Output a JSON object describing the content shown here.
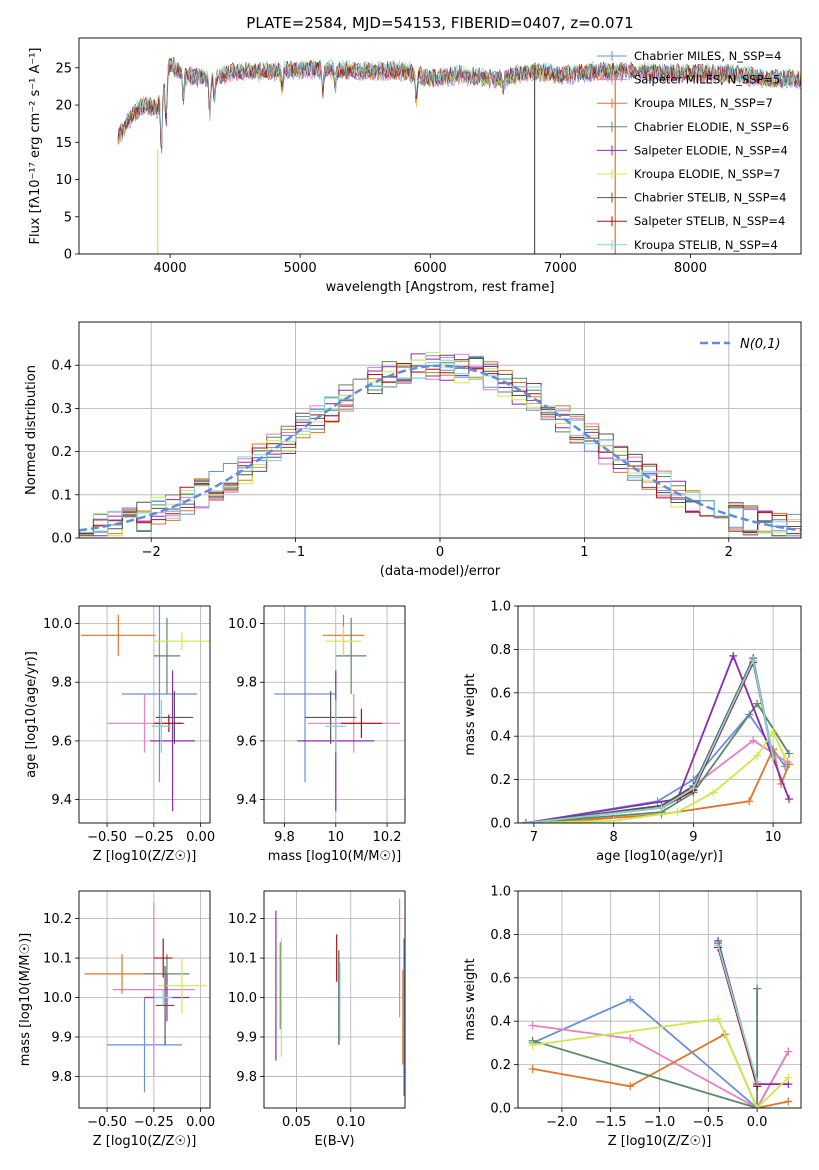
{
  "colors": {
    "chabrier_miles": "#6a8fdc",
    "salpeter_miles": "#e87fbf",
    "kroupa_miles": "#e0762a",
    "chabrier_elodie": "#5a8a66",
    "salpeter_elodie": "#8e2ab0",
    "kroupa_elodie": "#cdea4a",
    "chabrier_stelib": "#555555",
    "salpeter_stelib": "#aa1111",
    "kroupa_stelib": "#7fd4de",
    "gaussian": "#5a8fdc"
  },
  "chart_data": [
    {
      "type": "line",
      "title": "PLATE=2584, MJD=54153, FIBERID=0407, z=0.071",
      "xlabel": "wavelength [Angstrom, rest frame]",
      "ylabel": "Flux [fλ10⁻¹⁷ erg cm⁻² s⁻¹ A⁻¹]",
      "xlim": [
        3300,
        8850
      ],
      "ylim": [
        0,
        29
      ],
      "xticks": [
        4000,
        5000,
        6000,
        7000,
        8000
      ],
      "yticks": [
        0,
        5,
        10,
        15,
        20,
        25
      ],
      "grid": false,
      "legend_position": "top-right",
      "legend": [
        {
          "label": "Chabrier MILES, N_SSP=4",
          "color_key": "chabrier_miles"
        },
        {
          "label": "Salpeter MILES, N_SSP=5",
          "color_key": "salpeter_miles"
        },
        {
          "label": "Kroupa MILES, N_SSP=7",
          "color_key": "kroupa_miles"
        },
        {
          "label": "Chabrier ELODIE, N_SSP=6",
          "color_key": "chabrier_elodie"
        },
        {
          "label": "Salpeter ELODIE, N_SSP=4",
          "color_key": "salpeter_elodie"
        },
        {
          "label": "Kroupa ELODIE, N_SSP=7",
          "color_key": "kroupa_elodie"
        },
        {
          "label": "Chabrier STELIB, N_SSP=4",
          "color_key": "chabrier_stelib"
        },
        {
          "label": "Salpeter STELIB, N_SSP=4",
          "color_key": "salpeter_stelib"
        },
        {
          "label": "Kroupa STELIB, N_SSP=4",
          "color_key": "kroupa_stelib"
        }
      ],
      "continuum": {
        "x": [
          3600,
          3700,
          3800,
          3900,
          4000,
          4100,
          4300,
          4500,
          4800,
          5000,
          5200,
          5500,
          5800,
          6000,
          6200,
          6500,
          6800,
          7000,
          7300,
          7600,
          7800,
          8000,
          8300,
          8600,
          8850
        ],
        "y": [
          15.5,
          18.5,
          20,
          19.5,
          25.5,
          24,
          23.5,
          24.5,
          24.5,
          24.8,
          24.8,
          24.5,
          24.6,
          23.5,
          24,
          23.5,
          24.5,
          24,
          24.5,
          24.5,
          24.2,
          24.3,
          24.2,
          23.5,
          23.5
        ]
      },
      "absorption_lines": [
        {
          "x": 3934,
          "depth": 8
        },
        {
          "x": 3969,
          "depth": 6
        },
        {
          "x": 4102,
          "depth": 3
        },
        {
          "x": 4305,
          "depth": 4.5
        },
        {
          "x": 4341,
          "depth": 3
        },
        {
          "x": 4861,
          "depth": 2.5
        },
        {
          "x": 5175,
          "depth": 3
        },
        {
          "x": 5270,
          "depth": 2
        },
        {
          "x": 5893,
          "depth": 3.5
        },
        {
          "x": 6563,
          "depth": 1.5
        }
      ],
      "sky_spikes": [
        {
          "x": 3905,
          "y0": 0,
          "y1": 14,
          "color_key": "kroupa_elodie"
        },
        {
          "x": 6802,
          "y0": 0,
          "y1": 25,
          "color_key": "chabrier_stelib"
        },
        {
          "x": 7422,
          "y0": 0,
          "y1": 24,
          "color_key": "kroupa_miles"
        }
      ]
    },
    {
      "type": "bar",
      "xlabel": "(data-model)/error",
      "ylabel": "Normed distribution",
      "xlim": [
        -2.5,
        2.5
      ],
      "ylim": [
        0,
        0.5
      ],
      "xticks": [
        -2,
        -1,
        0,
        1,
        2
      ],
      "yticks": [
        0.0,
        0.1,
        0.2,
        0.3,
        0.4
      ],
      "grid": true,
      "legend_position": "top-right",
      "legend_label": "N(0,1)",
      "bin_width": 0.1,
      "reference_curve": "normal(0,1)"
    },
    {
      "type": "scatter",
      "xlabel": "Z [log10(Z/Z☉)]",
      "ylabel": "age  [log10(age/yr)]",
      "xlim": [
        -0.65,
        0.05
      ],
      "ylim": [
        9.32,
        10.06
      ],
      "xticks": [
        -0.5,
        -0.25,
        0.0
      ],
      "xtick_labels": [
        "−0.50",
        "−0.25",
        "0.00"
      ],
      "yticks": [
        9.4,
        9.6,
        9.8,
        10.0
      ],
      "grid": true,
      "points": [
        {
          "key": "chabrier_miles",
          "x": -0.22,
          "xerr": 0.2,
          "y": 9.76,
          "yerr": 0.3
        },
        {
          "key": "salpeter_miles",
          "x": -0.3,
          "xerr": 0.2,
          "y": 9.66,
          "yerr": 0.1
        },
        {
          "key": "kroupa_miles",
          "x": -0.44,
          "xerr": 0.2,
          "y": 9.96,
          "yerr": 0.07
        },
        {
          "key": "chabrier_elodie",
          "x": -0.18,
          "xerr": 0.07,
          "y": 9.89,
          "yerr": 0.13
        },
        {
          "key": "salpeter_elodie",
          "x": -0.15,
          "xerr": 0.12,
          "y": 9.6,
          "yerr": 0.24
        },
        {
          "key": "kroupa_elodie",
          "x": -0.1,
          "xerr": 0.15,
          "y": 9.94,
          "yerr": 0.03
        },
        {
          "key": "chabrier_stelib",
          "x": -0.14,
          "xerr": 0.1,
          "y": 9.68,
          "yerr": 0.09
        },
        {
          "key": "salpeter_stelib",
          "x": -0.17,
          "xerr": 0.08,
          "y": 9.66,
          "yerr": 0.03
        },
        {
          "key": "kroupa_stelib",
          "x": -0.21,
          "xerr": 0.05,
          "y": 9.65,
          "yerr": 0.09
        }
      ]
    },
    {
      "type": "scatter",
      "xlabel": "mass [log10(M/M☉)]",
      "xlim": [
        9.72,
        10.27
      ],
      "ylim": [
        9.32,
        10.06
      ],
      "xticks": [
        9.8,
        10.0,
        10.2
      ],
      "yticks": [
        9.4,
        9.6,
        9.8,
        10.0
      ],
      "grid": true,
      "points": [
        {
          "key": "chabrier_miles",
          "x": 9.88,
          "xerr": 0.12,
          "y": 9.76,
          "yerr": 0.3
        },
        {
          "key": "salpeter_miles",
          "x": 10.07,
          "xerr": 0.18,
          "y": 9.66,
          "yerr": 0.1
        },
        {
          "key": "kroupa_miles",
          "x": 10.03,
          "xerr": 0.08,
          "y": 9.96,
          "yerr": 0.07
        },
        {
          "key": "chabrier_elodie",
          "x": 10.06,
          "xerr": 0.06,
          "y": 9.89,
          "yerr": 0.13
        },
        {
          "key": "salpeter_elodie",
          "x": 10.0,
          "xerr": 0.15,
          "y": 9.6,
          "yerr": 0.24
        },
        {
          "key": "kroupa_elodie",
          "x": 10.03,
          "xerr": 0.07,
          "y": 9.94,
          "yerr": 0.05
        },
        {
          "key": "chabrier_stelib",
          "x": 9.98,
          "xerr": 0.1,
          "y": 9.68,
          "yerr": 0.09
        },
        {
          "key": "salpeter_stelib",
          "x": 10.1,
          "xerr": 0.08,
          "y": 9.66,
          "yerr": 0.05
        },
        {
          "key": "kroupa_stelib",
          "x": 10.0,
          "xerr": 0.04,
          "y": 9.65,
          "yerr": 0.09
        }
      ]
    },
    {
      "type": "line",
      "xlabel": "age  [log10(age/yr)]",
      "ylabel": "mass weight",
      "xlim": [
        6.8,
        10.35
      ],
      "ylim": [
        0,
        1
      ],
      "xticks": [
        7,
        8,
        9,
        10
      ],
      "yticks": [
        0.0,
        0.2,
        0.4,
        0.6,
        0.8,
        1.0
      ],
      "grid": true,
      "series": [
        {
          "key": "chabrier_miles",
          "x": [
            6.9,
            8.55,
            9.0,
            9.7,
            10.15
          ],
          "y": [
            0.0,
            0.1,
            0.2,
            0.5,
            0.26
          ]
        },
        {
          "key": "salpeter_miles",
          "x": [
            6.9,
            8.6,
            9.0,
            9.75,
            10.18
          ],
          "y": [
            0.0,
            0.07,
            0.17,
            0.38,
            0.28
          ]
        },
        {
          "key": "kroupa_miles",
          "x": [
            6.9,
            7.5,
            8.6,
            9.7,
            10.0,
            10.1,
            10.2
          ],
          "y": [
            0.0,
            0.01,
            0.04,
            0.1,
            0.34,
            0.18,
            0.27
          ]
        },
        {
          "key": "chabrier_elodie",
          "x": [
            6.9,
            8.6,
            9.0,
            9.8,
            10.2
          ],
          "y": [
            0.0,
            0.05,
            0.14,
            0.55,
            0.32
          ]
        },
        {
          "key": "salpeter_elodie",
          "x": [
            6.9,
            8.8,
            9.5,
            10.2
          ],
          "y": [
            0.0,
            0.11,
            0.77,
            0.11
          ]
        },
        {
          "key": "kroupa_elodie",
          "x": [
            6.9,
            8.0,
            8.8,
            9.25,
            9.8,
            10.0,
            10.15
          ],
          "y": [
            0.0,
            0.01,
            0.05,
            0.14,
            0.31,
            0.42,
            0.3
          ]
        },
        {
          "key": "chabrier_stelib",
          "x": [
            6.9,
            8.6,
            9.0,
            9.75,
            10.0
          ],
          "y": [
            0.0,
            0.08,
            0.17,
            0.76,
            0.3
          ]
        },
        {
          "key": "salpeter_stelib",
          "x": [
            6.9,
            8.6,
            9.0,
            9.75,
            10.0
          ],
          "y": [
            0.0,
            0.07,
            0.15,
            0.74,
            0.3
          ]
        },
        {
          "key": "kroupa_stelib",
          "x": [
            6.9,
            8.6,
            9.0,
            9.75,
            10.0
          ],
          "y": [
            0.0,
            0.07,
            0.16,
            0.75,
            0.3
          ]
        }
      ]
    },
    {
      "type": "scatter",
      "xlabel": "Z [log10(Z/Z☉)]",
      "ylabel": "mass [log10(M/M☉)]",
      "xlim": [
        -0.65,
        0.05
      ],
      "ylim": [
        9.72,
        10.27
      ],
      "xticks": [
        -0.5,
        -0.25,
        0.0
      ],
      "xtick_labels": [
        "−0.50",
        "−0.25",
        "0.00"
      ],
      "yticks": [
        9.8,
        9.9,
        10.0,
        10.1,
        10.2
      ],
      "grid": true,
      "points": [
        {
          "key": "chabrier_miles",
          "x": -0.3,
          "xerr": 0.2,
          "y": 9.88,
          "yerr": 0.12
        },
        {
          "key": "salpeter_miles",
          "x": -0.25,
          "xerr": 0.22,
          "y": 10.02,
          "yerr": 0.22
        },
        {
          "key": "kroupa_miles",
          "x": -0.42,
          "xerr": 0.2,
          "y": 10.06,
          "yerr": 0.05
        },
        {
          "key": "chabrier_elodie",
          "x": -0.18,
          "xerr": 0.12,
          "y": 10.06,
          "yerr": 0.05
        },
        {
          "key": "salpeter_elodie",
          "x": -0.18,
          "xerr": 0.12,
          "y": 10.0,
          "yerr": 0.06
        },
        {
          "key": "kroupa_elodie",
          "x": -0.1,
          "xerr": 0.13,
          "y": 10.03,
          "yerr": 0.07
        },
        {
          "key": "chabrier_stelib",
          "x": -0.19,
          "xerr": 0.05,
          "y": 9.98,
          "yerr": 0.1
        },
        {
          "key": "salpeter_stelib",
          "x": -0.2,
          "xerr": 0.05,
          "y": 10.1,
          "yerr": 0.05
        },
        {
          "key": "kroupa_stelib",
          "x": -0.2,
          "xerr": 0.05,
          "y": 10.0,
          "yerr": 0.02
        }
      ]
    },
    {
      "type": "scatter",
      "xlabel": "E(B-V)",
      "xlim": [
        0.02,
        0.15
      ],
      "ylim": [
        9.72,
        10.27
      ],
      "xticks": [
        0.05,
        0.1
      ],
      "xtick_labels": [
        "0.05",
        "0.10"
      ],
      "yticks": [
        9.8,
        9.9,
        10.0,
        10.1,
        10.2
      ],
      "grid": true,
      "points": [
        {
          "key": "chabrier_miles",
          "x": 0.149,
          "y": 9.95,
          "yerr": 0.2
        },
        {
          "key": "salpeter_miles",
          "x": 0.145,
          "y": 10.1,
          "yerr": 0.15
        },
        {
          "key": "kroupa_miles",
          "x": 0.148,
          "y": 9.95,
          "yerr": 0.12
        },
        {
          "key": "chabrier_elodie",
          "x": 0.035,
          "y": 10.03,
          "yerr": 0.11
        },
        {
          "key": "salpeter_elodie",
          "x": 0.031,
          "y": 10.03,
          "yerr": 0.19
        },
        {
          "key": "kroupa_elodie",
          "x": 0.036,
          "y": 10.0,
          "yerr": 0.15
        },
        {
          "key": "chabrier_stelib",
          "x": 0.089,
          "y": 10.0,
          "yerr": 0.12
        },
        {
          "key": "salpeter_stelib",
          "x": 0.087,
          "y": 10.1,
          "yerr": 0.06
        },
        {
          "key": "kroupa_stelib",
          "x": 0.09,
          "y": 9.99,
          "yerr": 0.1
        }
      ]
    },
    {
      "type": "line",
      "xlabel": "Z [log10(Z/Z☉)]",
      "ylabel": "mass weight",
      "xlim": [
        -2.45,
        0.45
      ],
      "ylim": [
        0,
        1
      ],
      "xticks": [
        -2.0,
        -1.5,
        -1.0,
        -0.5,
        0.0
      ],
      "xtick_labels": [
        "−2.0",
        "−1.5",
        "−1.0",
        "−0.5",
        "0.0"
      ],
      "yticks": [
        0.0,
        0.2,
        0.4,
        0.6,
        0.8,
        1.0
      ],
      "grid": true,
      "series": [
        {
          "key": "chabrier_miles",
          "x": [
            -2.3,
            -1.3,
            0.0,
            0.32
          ],
          "y": [
            0.3,
            0.5,
            0.0,
            0.26
          ]
        },
        {
          "key": "salpeter_miles",
          "x": [
            -2.3,
            -1.3,
            0.0,
            0.32
          ],
          "y": [
            0.38,
            0.32,
            0.0,
            0.26
          ]
        },
        {
          "key": "kroupa_miles",
          "x": [
            -2.3,
            -1.3,
            -0.33,
            0.0,
            0.32
          ],
          "y": [
            0.18,
            0.1,
            0.34,
            0.0,
            0.03
          ]
        },
        {
          "key": "chabrier_elodie",
          "x": [
            -2.3,
            0.0,
            0.0
          ],
          "y": [
            0.31,
            0.0,
            0.55
          ]
        },
        {
          "key": "salpeter_elodie",
          "x": [
            -0.4,
            0.0,
            0.32
          ],
          "y": [
            0.77,
            0.11,
            0.11
          ]
        },
        {
          "key": "kroupa_elodie",
          "x": [
            -2.3,
            -0.4,
            0.0,
            0.32
          ],
          "y": [
            0.29,
            0.41,
            0.0,
            0.14
          ]
        },
        {
          "key": "chabrier_stelib",
          "x": [
            -0.4,
            0.0
          ],
          "y": [
            0.76,
            0.1
          ]
        },
        {
          "key": "salpeter_stelib",
          "x": [
            -0.4,
            0.0
          ],
          "y": [
            0.74,
            0.1
          ]
        },
        {
          "key": "kroupa_stelib",
          "x": [
            -0.4,
            0.0
          ],
          "y": [
            0.75,
            0.12
          ]
        }
      ]
    }
  ]
}
